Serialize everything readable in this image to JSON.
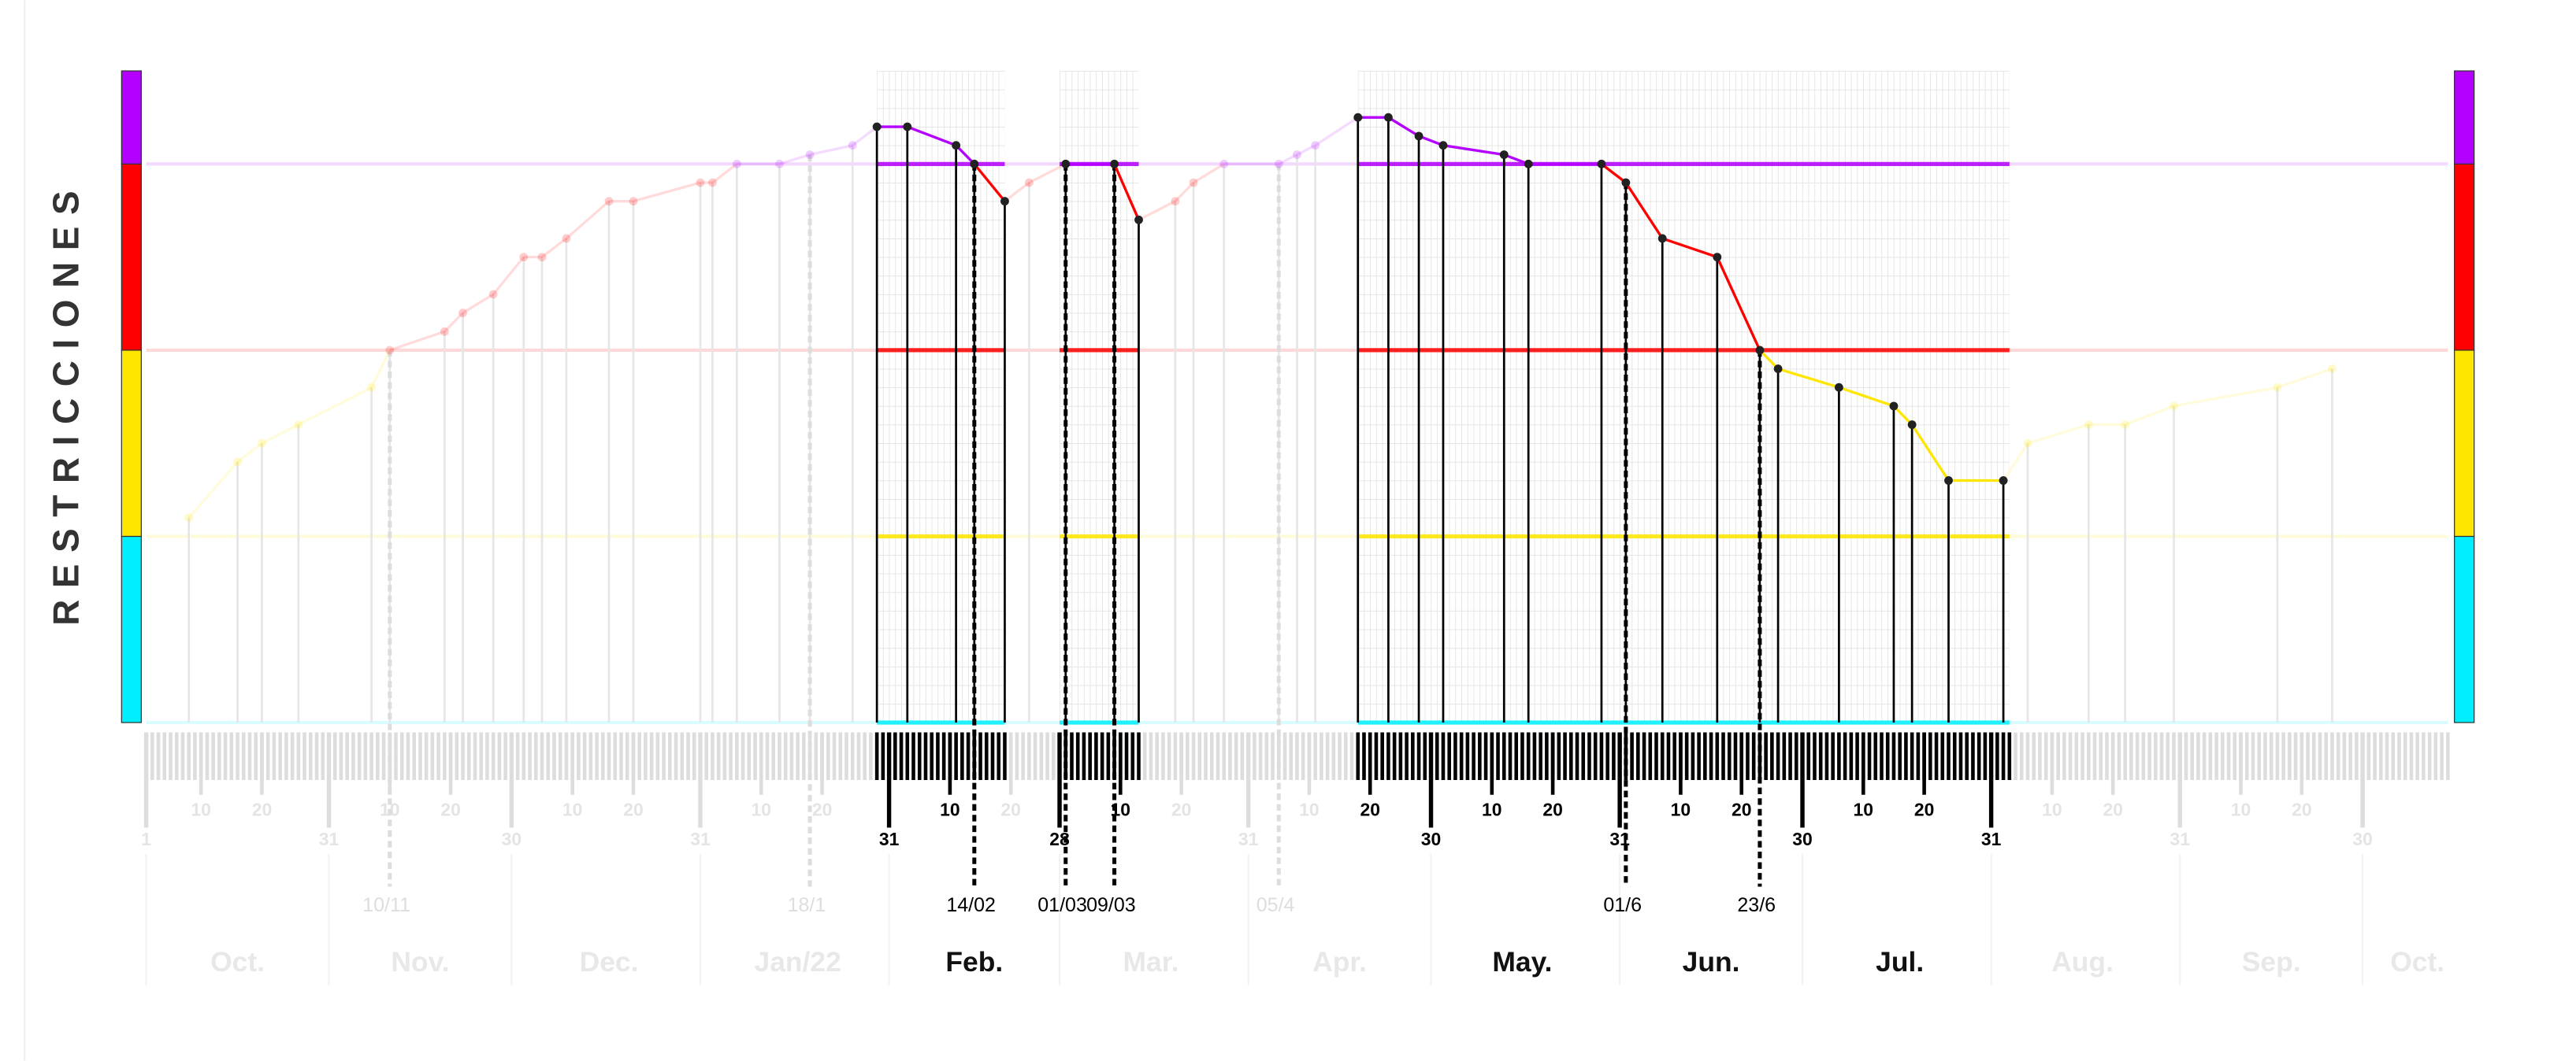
{
  "chart_data": {
    "type": "line",
    "y_label": "RESTRICCIONES",
    "xlim": [
      0,
      378
    ],
    "ylim": [
      0,
      3.5
    ],
    "bands": [
      {
        "from": 0,
        "to": 1,
        "color": "#00eeff"
      },
      {
        "from": 1,
        "to": 2,
        "color": "#ffe600"
      },
      {
        "from": 2,
        "to": 3,
        "color": "#ff0000"
      },
      {
        "from": 3,
        "to": 3.5,
        "color": "#b400ff"
      }
    ],
    "highlight_ranges": [
      [
        120,
        141
      ],
      [
        150,
        163
      ],
      [
        199,
        306
      ]
    ],
    "x": [
      7,
      15,
      19,
      25,
      37,
      40,
      49,
      52,
      57,
      62,
      65,
      69,
      76,
      80,
      91,
      93,
      97,
      104,
      109,
      116,
      120,
      125,
      133,
      136,
      141,
      145,
      151,
      159,
      163,
      169,
      172,
      177,
      186,
      189,
      192,
      199,
      204,
      209,
      213,
      223,
      227,
      239,
      243,
      249,
      258,
      265,
      268,
      278,
      287,
      290,
      296,
      305,
      309,
      319,
      325,
      333,
      350,
      359
    ],
    "values": [
      1.1,
      1.4,
      1.5,
      1.6,
      1.8,
      2.0,
      2.1,
      2.2,
      2.3,
      2.5,
      2.5,
      2.6,
      2.8,
      2.8,
      2.9,
      2.9,
      3.0,
      3.0,
      3.05,
      3.1,
      3.2,
      3.2,
      3.1,
      3.0,
      2.8,
      2.9,
      3.0,
      3.0,
      2.7,
      2.8,
      2.9,
      3.0,
      3.0,
      3.05,
      3.1,
      3.25,
      3.25,
      3.15,
      3.1,
      3.05,
      3.0,
      3.0,
      2.9,
      2.6,
      2.5,
      2.0,
      1.9,
      1.8,
      1.7,
      1.6,
      1.3,
      1.3,
      1.5,
      1.6,
      1.6,
      1.7,
      1.8,
      1.9
    ],
    "xticks": [
      {
        "value": 9,
        "label": "10"
      },
      {
        "value": 19,
        "label": "20"
      },
      {
        "value": 40,
        "label": "10"
      },
      {
        "value": 50,
        "label": "20"
      },
      {
        "value": 70,
        "label": "10"
      },
      {
        "value": 80,
        "label": "20"
      },
      {
        "value": 101,
        "label": "10"
      },
      {
        "value": 111,
        "label": "20"
      },
      {
        "value": 132,
        "label": "10"
      },
      {
        "value": 142,
        "label": "20"
      },
      {
        "value": 160,
        "label": "10"
      },
      {
        "value": 170,
        "label": "20"
      },
      {
        "value": 191,
        "label": "10"
      },
      {
        "value": 201,
        "label": "20"
      },
      {
        "value": 221,
        "label": "10"
      },
      {
        "value": 231,
        "label": "20"
      },
      {
        "value": 252,
        "label": "10"
      },
      {
        "value": 262,
        "label": "20"
      },
      {
        "value": 282,
        "label": "10"
      },
      {
        "value": 292,
        "label": "20"
      },
      {
        "value": 313,
        "label": "10"
      },
      {
        "value": 323,
        "label": "20"
      },
      {
        "value": 344,
        "label": "10"
      },
      {
        "value": 354,
        "label": "20"
      }
    ],
    "month_end_ticks": [
      {
        "value": 0,
        "label": "1"
      },
      {
        "value": 30,
        "label": "31"
      },
      {
        "value": 60,
        "label": "30"
      },
      {
        "value": 91,
        "label": "31"
      },
      {
        "value": 122,
        "label": "31"
      },
      {
        "value": 150,
        "label": "28"
      },
      {
        "value": 181,
        "label": "31"
      },
      {
        "value": 211,
        "label": "30"
      },
      {
        "value": 242,
        "label": "31"
      },
      {
        "value": 272,
        "label": "30"
      },
      {
        "value": 303,
        "label": "31"
      },
      {
        "value": 334,
        "label": "31"
      },
      {
        "value": 364,
        "label": "30"
      }
    ],
    "month_labels": [
      {
        "value": 15,
        "label": "Oct."
      },
      {
        "value": 45,
        "label": "Nov."
      },
      {
        "value": 76,
        "label": "Dec."
      },
      {
        "value": 107,
        "label": "Jan/22"
      },
      {
        "value": 136,
        "label": "Feb."
      },
      {
        "value": 165,
        "label": "Mar."
      },
      {
        "value": 196,
        "label": "Apr."
      },
      {
        "value": 226,
        "label": "May."
      },
      {
        "value": 257,
        "label": "Jun."
      },
      {
        "value": 288,
        "label": "Jul."
      },
      {
        "value": 318,
        "label": "Aug."
      },
      {
        "value": 349,
        "label": "Sep."
      },
      {
        "value": 373,
        "label": "Oct."
      }
    ],
    "annotations": [
      {
        "x": 40,
        "label": "10/11"
      },
      {
        "x": 109,
        "label": "18/1"
      },
      {
        "x": 136,
        "label": "14/02"
      },
      {
        "x": 151,
        "label": "01/03"
      },
      {
        "x": 159,
        "label": "09/03"
      },
      {
        "x": 186,
        "label": "05/4"
      },
      {
        "x": 243,
        "label": "01/6"
      },
      {
        "x": 265,
        "label": "23/6"
      }
    ]
  }
}
